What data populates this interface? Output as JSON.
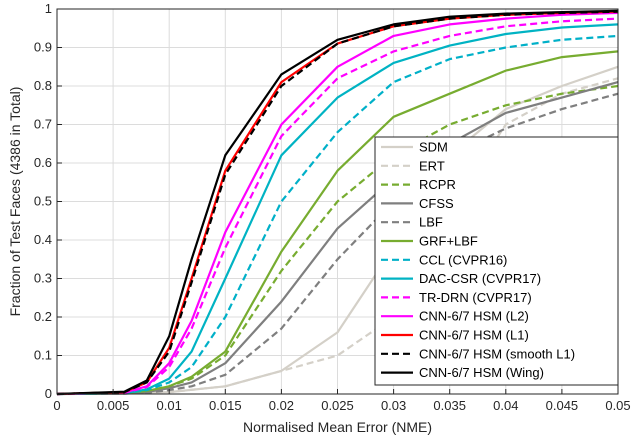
{
  "chart_data": {
    "type": "line",
    "title": "",
    "xlabel": "Normalised Mean Error (NME)",
    "ylabel": "Fraction of Test Faces (4386 in Total)",
    "xlim": [
      0,
      0.05
    ],
    "ylim": [
      0,
      1
    ],
    "xticks": [
      "0",
      "0.005",
      "0.01",
      "0.015",
      "0.02",
      "0.025",
      "0.03",
      "0.035",
      "0.04",
      "0.045",
      "0.05"
    ],
    "yticks": [
      "0",
      "0.1",
      "0.2",
      "0.3",
      "0.4",
      "0.5",
      "0.6",
      "0.7",
      "0.8",
      "0.9",
      "1"
    ],
    "grid": true,
    "legend_position": "bottom-right",
    "series": [
      {
        "name": "SDM",
        "color": "#d4d0c8",
        "dash": "solid",
        "x": [
          0,
          0.01,
          0.015,
          0.02,
          0.025,
          0.03,
          0.035,
          0.04,
          0.045,
          0.05
        ],
        "y": [
          0,
          0.005,
          0.02,
          0.06,
          0.16,
          0.38,
          0.62,
          0.74,
          0.8,
          0.85
        ]
      },
      {
        "name": "ERT",
        "color": "#d4d0c8",
        "dash": "dashed",
        "x": [
          0,
          0.01,
          0.015,
          0.02,
          0.025,
          0.03,
          0.035,
          0.04,
          0.045,
          0.05
        ],
        "y": [
          0,
          0.005,
          0.02,
          0.06,
          0.1,
          0.2,
          0.48,
          0.7,
          0.78,
          0.82
        ]
      },
      {
        "name": "RCPR",
        "color": "#77ac30",
        "dash": "dashed",
        "x": [
          0,
          0.006,
          0.008,
          0.01,
          0.012,
          0.015,
          0.02,
          0.025,
          0.03,
          0.035,
          0.04,
          0.045,
          0.05
        ],
        "y": [
          0,
          0.002,
          0.008,
          0.02,
          0.04,
          0.1,
          0.32,
          0.5,
          0.62,
          0.7,
          0.75,
          0.78,
          0.8
        ]
      },
      {
        "name": "CFSS",
        "color": "#7f7f7f",
        "dash": "solid",
        "x": [
          0,
          0.006,
          0.008,
          0.01,
          0.012,
          0.015,
          0.02,
          0.025,
          0.03,
          0.035,
          0.04,
          0.045,
          0.05
        ],
        "y": [
          0,
          0.001,
          0.005,
          0.015,
          0.03,
          0.08,
          0.24,
          0.43,
          0.56,
          0.65,
          0.73,
          0.77,
          0.81
        ]
      },
      {
        "name": "LBF",
        "color": "#7f7f7f",
        "dash": "dashed",
        "x": [
          0,
          0.006,
          0.008,
          0.01,
          0.012,
          0.015,
          0.02,
          0.025,
          0.03,
          0.035,
          0.04,
          0.045,
          0.05
        ],
        "y": [
          0,
          0.001,
          0.003,
          0.01,
          0.02,
          0.05,
          0.17,
          0.35,
          0.5,
          0.62,
          0.69,
          0.74,
          0.78
        ]
      },
      {
        "name": "GRF+LBF",
        "color": "#77ac30",
        "dash": "solid",
        "x": [
          0,
          0.006,
          0.008,
          0.01,
          0.012,
          0.015,
          0.02,
          0.025,
          0.03,
          0.035,
          0.04,
          0.045,
          0.05
        ],
        "y": [
          0,
          0.002,
          0.008,
          0.02,
          0.045,
          0.11,
          0.37,
          0.58,
          0.72,
          0.78,
          0.84,
          0.875,
          0.89
        ]
      },
      {
        "name": "CCL (CVPR16)",
        "color": "#00b0c8",
        "dash": "dashed",
        "x": [
          0,
          0.006,
          0.008,
          0.01,
          0.012,
          0.015,
          0.02,
          0.025,
          0.03,
          0.035,
          0.04,
          0.045,
          0.05
        ],
        "y": [
          0,
          0.002,
          0.01,
          0.03,
          0.07,
          0.2,
          0.5,
          0.68,
          0.81,
          0.87,
          0.9,
          0.92,
          0.93
        ]
      },
      {
        "name": "DAC-CSR (CVPR17)",
        "color": "#00b3c3",
        "dash": "solid",
        "x": [
          0,
          0.006,
          0.008,
          0.01,
          0.012,
          0.015,
          0.02,
          0.025,
          0.03,
          0.035,
          0.04,
          0.045,
          0.05
        ],
        "y": [
          0,
          0.002,
          0.012,
          0.04,
          0.11,
          0.3,
          0.62,
          0.77,
          0.86,
          0.905,
          0.935,
          0.952,
          0.96
        ]
      },
      {
        "name": "TR-DRN (CVPR17)",
        "color": "#ff00ff",
        "dash": "dashed",
        "x": [
          0,
          0.006,
          0.008,
          0.01,
          0.012,
          0.015,
          0.02,
          0.025,
          0.03,
          0.035,
          0.04,
          0.045,
          0.05
        ],
        "y": [
          0,
          0.003,
          0.018,
          0.07,
          0.17,
          0.38,
          0.67,
          0.82,
          0.89,
          0.93,
          0.955,
          0.968,
          0.975
        ]
      },
      {
        "name": "CNN-6/7 HSM (L2)",
        "color": "#ff00ff",
        "dash": "solid",
        "x": [
          0,
          0.006,
          0.008,
          0.01,
          0.012,
          0.015,
          0.02,
          0.025,
          0.03,
          0.035,
          0.04,
          0.045,
          0.05
        ],
        "y": [
          0,
          0.004,
          0.02,
          0.08,
          0.19,
          0.42,
          0.7,
          0.85,
          0.93,
          0.96,
          0.975,
          0.985,
          0.99
        ]
      },
      {
        "name": "CNN-6/7 HSM (L1)",
        "color": "#ff0000",
        "dash": "solid",
        "x": [
          0,
          0.006,
          0.008,
          0.01,
          0.012,
          0.015,
          0.02,
          0.025,
          0.03,
          0.035,
          0.04,
          0.045,
          0.05
        ],
        "y": [
          0,
          0.005,
          0.03,
          0.12,
          0.3,
          0.58,
          0.81,
          0.91,
          0.955,
          0.975,
          0.985,
          0.99,
          0.993
        ]
      },
      {
        "name": "CNN-6/7 HSM (smooth L1)",
        "color": "#000000",
        "dash": "dashed",
        "x": [
          0,
          0.006,
          0.008,
          0.01,
          0.012,
          0.015,
          0.02,
          0.025,
          0.03,
          0.035,
          0.04,
          0.045,
          0.05
        ],
        "y": [
          0,
          0.005,
          0.03,
          0.11,
          0.29,
          0.57,
          0.8,
          0.91,
          0.955,
          0.975,
          0.985,
          0.99,
          0.993
        ]
      },
      {
        "name": "CNN-6/7 HSM (Wing)",
        "color": "#000000",
        "dash": "solid",
        "x": [
          0,
          0.006,
          0.008,
          0.01,
          0.012,
          0.015,
          0.02,
          0.025,
          0.03,
          0.035,
          0.04,
          0.045,
          0.05
        ],
        "y": [
          0,
          0.006,
          0.035,
          0.15,
          0.35,
          0.62,
          0.83,
          0.92,
          0.96,
          0.98,
          0.988,
          0.992,
          0.995
        ]
      }
    ]
  }
}
